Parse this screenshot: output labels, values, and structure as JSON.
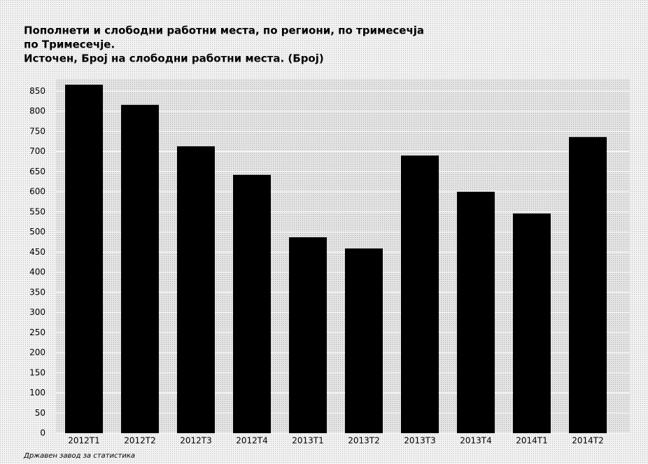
{
  "chart_data": {
    "type": "bar",
    "title": [
      "Пополнети и слободни работни места, по региони, по тримесечја",
      "по Тримесечје.",
      "Источен, Број на слободни работни места. (Број)"
    ],
    "source": "Државен завод за статистика",
    "categories": [
      "2012T1",
      "2012T2",
      "2012T3",
      "2012T4",
      "2013T1",
      "2013T2",
      "2013T3",
      "2013T4",
      "2014T1",
      "2014T2"
    ],
    "values": [
      866,
      816,
      713,
      642,
      487,
      459,
      690,
      600,
      546,
      736
    ],
    "color": "#000000",
    "ylim": [
      0,
      880
    ],
    "yticks": [
      0,
      50,
      100,
      150,
      200,
      250,
      300,
      350,
      400,
      450,
      500,
      550,
      600,
      650,
      700,
      750,
      800,
      850
    ],
    "grid": true
  }
}
